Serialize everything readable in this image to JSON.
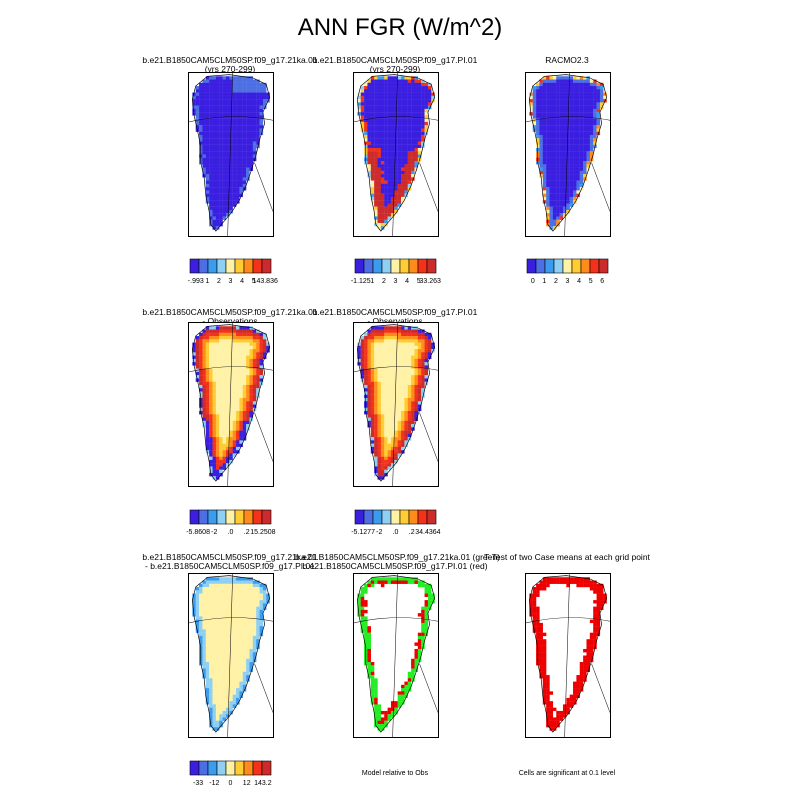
{
  "title": "ANN FGR (W/m^2)",
  "colors": {
    "scale": [
      "#3b1fe0",
      "#4c6fe4",
      "#3b9bef",
      "#8fd0f2",
      "#fff2a6",
      "#ffcc33",
      "#ff8c1a",
      "#f2321a",
      "#cc2b2b"
    ],
    "green": "#22ee22",
    "red": "#ee0000",
    "ocean": "#ffffff",
    "outline": "#000000"
  },
  "panels": [
    {
      "row": 0,
      "col": 0,
      "title_lines": [
        "b.e21.B1850CAM5CLM50SP.f09_g17.21ka.01",
        "(yrs 270-299)"
      ],
      "style": "low",
      "colorbar": {
        "labels": [
          "-.993",
          "1",
          "2",
          "3",
          "4",
          "5",
          "143.836"
        ]
      }
    },
    {
      "row": 0,
      "col": 1,
      "title_lines": [
        "b.e21.B1850CAM5CLM50SP.f09_g17.PI.01",
        "(yrs 270-299)"
      ],
      "style": "margin",
      "colorbar": {
        "labels": [
          "-1.125",
          "1",
          "2",
          "3",
          "4",
          "5",
          "33.263"
        ]
      }
    },
    {
      "row": 0,
      "col": 2,
      "title_lines": [
        "RACMO2.3"
      ],
      "style": "racmo",
      "colorbar": {
        "labels": [
          "0",
          "1",
          "2",
          "3",
          "4",
          "5",
          "6"
        ]
      }
    },
    {
      "row": 1,
      "col": 0,
      "title_lines": [
        "b.e21.B1850CAM5CLM50SP.f09_g17.21ka.01",
        "- Observations"
      ],
      "style": "diffA",
      "colorbar": {
        "labels": [
          "-5.8608",
          "-2",
          ".0",
          ".2",
          "15.2508"
        ]
      }
    },
    {
      "row": 1,
      "col": 1,
      "title_lines": [
        "b.e21.B1850CAM5CLM50SP.f09_g17.PI.01",
        "- Observations"
      ],
      "style": "diffB",
      "colorbar": {
        "labels": [
          "-5.1277",
          "-2",
          ".0",
          ".2",
          "34.4364"
        ]
      }
    },
    {
      "row": 2,
      "col": 0,
      "title_lines": [
        "b.e21.B1850CAM5CLM50SP.f09_g17.21ka.01",
        "- b.e21.B1850CAM5CLM50SP.f09_g17.PI.01"
      ],
      "style": "casediff",
      "colorbar": {
        "labels": [
          "-33",
          "-12",
          "0",
          "12",
          "143.2"
        ]
      }
    },
    {
      "row": 2,
      "col": 1,
      "title_lines": [
        "b.e21.B1850CAM5CLM50SP.f09_g17.21ka.01 (green)",
        "b.e21.B1850CAM5CLM50SP.f09_g17.PI.01 (red)"
      ],
      "style": "greenred",
      "note": "Model relative to Obs"
    },
    {
      "row": 2,
      "col": 2,
      "title_lines": [
        "T-Test of two Case means at each grid point"
      ],
      "style": "ttest",
      "note": "Cells are significant at 0.1 level"
    }
  ],
  "chart_data": {
    "type": "heatmap",
    "title": "ANN FGR (W/m^2)",
    "variable": "FGR",
    "units": "W/m^2",
    "region": "Greenland",
    "maps": [
      {
        "panel": "b.e21.B1850CAM5CLM50SP.f09_g17.21ka.01 (yrs 270-299)",
        "colorbar_range": [
          -0.993,
          143.836
        ],
        "colorbar_ticks": [
          1,
          2,
          3,
          4,
          5
        ]
      },
      {
        "panel": "b.e21.B1850CAM5CLM50SP.f09_g17.PI.01 (yrs 270-299)",
        "colorbar_range": [
          -1.125,
          33.263
        ],
        "colorbar_ticks": [
          1,
          2,
          3,
          4,
          5
        ]
      },
      {
        "panel": "RACMO2.3",
        "colorbar_ticks": [
          0,
          1,
          2,
          3,
          4,
          5,
          6
        ]
      },
      {
        "panel": "b.e21.B1850CAM5CLM50SP.f09_g17.21ka.01 - Observations",
        "colorbar_range": [
          -5.8608,
          15.2508
        ],
        "colorbar_ticks": [
          -2,
          0,
          0.2
        ]
      },
      {
        "panel": "b.e21.B1850CAM5CLM50SP.f09_g17.PI.01 - Observations",
        "colorbar_range": [
          -5.1277,
          34.4364
        ],
        "colorbar_ticks": [
          -2,
          0,
          0.2
        ]
      },
      {
        "panel": "b.e21.B1850CAM5CLM50SP.f09_g17.21ka.01 - b.e21.B1850CAM5CLM50SP.f09_g17.PI.01",
        "colorbar_range": [
          -33,
          143.2
        ],
        "colorbar_ticks": [
          -12,
          0,
          12
        ]
      },
      {
        "panel": "Model relative to Obs"
      },
      {
        "panel": "T-Test of two Case means at each grid point",
        "significance_level": 0.1
      }
    ]
  }
}
